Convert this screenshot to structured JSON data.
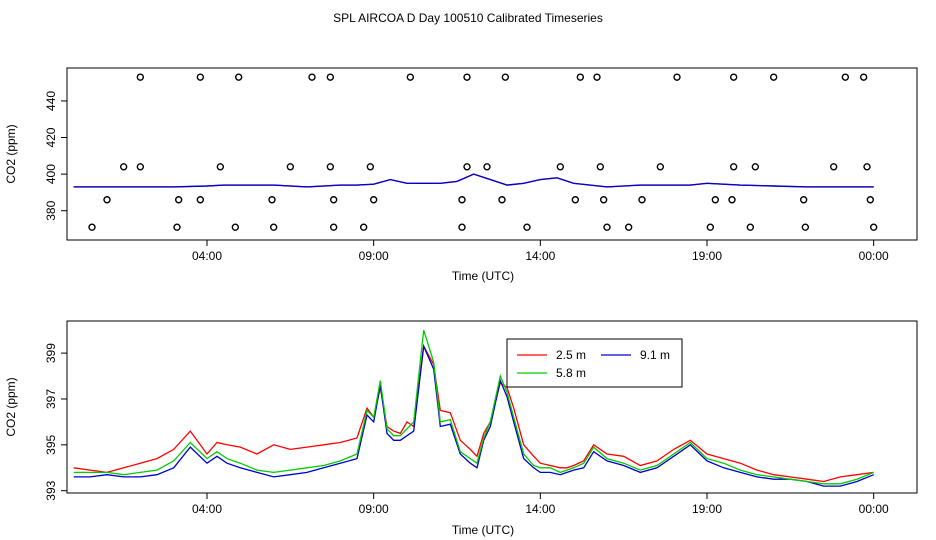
{
  "title": "SPL AIRCOA D  Day 100510  Calibrated Timeseries",
  "colors": {
    "s25": "#ff0000",
    "s58": "#00cc00",
    "s91": "#0000cc",
    "axis": "#000000"
  },
  "chart_data": [
    {
      "type": "line",
      "title": "",
      "xlabel": "Time (UTC)",
      "ylabel": "CO2 (ppm)",
      "xlim_hours": [
        -1.2,
        24.3
      ],
      "ylim": [
        364,
        458
      ],
      "x_ticks": [
        {
          "h": 3,
          "label": "04:00"
        },
        {
          "h": 8,
          "label": "09:00"
        },
        {
          "h": 13,
          "label": "14:00"
        },
        {
          "h": 18,
          "label": "19:00"
        },
        {
          "h": 23,
          "label": "00:00"
        }
      ],
      "y_ticks": [
        380,
        400,
        420,
        440
      ],
      "series_line": {
        "x": [
          -1,
          0,
          1,
          2,
          3,
          3.5,
          4,
          5,
          6,
          7,
          7.5,
          8,
          8.5,
          9,
          9.5,
          10,
          10.5,
          11,
          11.5,
          12,
          12.5,
          13,
          13.5,
          14,
          15,
          16,
          17,
          17.5,
          18,
          19,
          20,
          21,
          22,
          23
        ],
        "y": [
          393,
          393,
          393,
          393,
          393.5,
          394,
          394,
          394,
          393,
          394,
          394,
          394.5,
          397,
          395,
          395,
          395,
          396,
          400,
          397,
          394,
          395,
          397,
          398,
          395,
          393,
          394,
          394,
          394,
          395,
          394,
          393.5,
          393,
          393,
          393
        ]
      },
      "outliers": [
        {
          "h": 1.0,
          "v": 453
        },
        {
          "h": 2.8,
          "v": 453
        },
        {
          "h": 3.95,
          "v": 453
        },
        {
          "h": 6.15,
          "v": 453
        },
        {
          "h": 6.7,
          "v": 453
        },
        {
          "h": 9.1,
          "v": 453
        },
        {
          "h": 10.8,
          "v": 453
        },
        {
          "h": 11.95,
          "v": 453
        },
        {
          "h": 14.2,
          "v": 453
        },
        {
          "h": 14.7,
          "v": 453
        },
        {
          "h": 17.1,
          "v": 453
        },
        {
          "h": 18.8,
          "v": 453
        },
        {
          "h": 20.0,
          "v": 453
        },
        {
          "h": 22.15,
          "v": 453
        },
        {
          "h": 22.7,
          "v": 453
        },
        {
          "h": 0.5,
          "v": 404
        },
        {
          "h": 1.0,
          "v": 404
        },
        {
          "h": 3.4,
          "v": 404
        },
        {
          "h": 5.5,
          "v": 404
        },
        {
          "h": 6.7,
          "v": 404
        },
        {
          "h": 7.9,
          "v": 404
        },
        {
          "h": 10.8,
          "v": 404
        },
        {
          "h": 11.4,
          "v": 404
        },
        {
          "h": 13.6,
          "v": 404
        },
        {
          "h": 14.8,
          "v": 404
        },
        {
          "h": 16.6,
          "v": 404
        },
        {
          "h": 18.8,
          "v": 404
        },
        {
          "h": 19.45,
          "v": 404
        },
        {
          "h": 21.8,
          "v": 404
        },
        {
          "h": 22.8,
          "v": 404
        },
        {
          "h": 0,
          "v": 386
        },
        {
          "h": 2.15,
          "v": 386
        },
        {
          "h": 2.8,
          "v": 386
        },
        {
          "h": 4.95,
          "v": 386
        },
        {
          "h": 6.8,
          "v": 386
        },
        {
          "h": 8.0,
          "v": 386
        },
        {
          "h": 10.65,
          "v": 386
        },
        {
          "h": 11.85,
          "v": 386
        },
        {
          "h": 14.05,
          "v": 386
        },
        {
          "h": 14.9,
          "v": 386
        },
        {
          "h": 16.05,
          "v": 386
        },
        {
          "h": 18.25,
          "v": 386
        },
        {
          "h": 18.75,
          "v": 386
        },
        {
          "h": 20.9,
          "v": 386
        },
        {
          "h": 22.9,
          "v": 386
        },
        {
          "h": -0.45,
          "v": 371
        },
        {
          "h": 2.1,
          "v": 371
        },
        {
          "h": 3.85,
          "v": 371
        },
        {
          "h": 5.0,
          "v": 371
        },
        {
          "h": 6.8,
          "v": 371
        },
        {
          "h": 7.7,
          "v": 371
        },
        {
          "h": 10.65,
          "v": 371
        },
        {
          "h": 12.6,
          "v": 371
        },
        {
          "h": 15.0,
          "v": 371
        },
        {
          "h": 15.65,
          "v": 371
        },
        {
          "h": 18.1,
          "v": 371
        },
        {
          "h": 19.3,
          "v": 371
        },
        {
          "h": 20.95,
          "v": 371
        },
        {
          "h": 23.0,
          "v": 371
        }
      ]
    },
    {
      "type": "line",
      "xlabel": "Time (UTC)",
      "ylabel": "CO2 (ppm)",
      "xlim_hours": [
        -1.2,
        24.3
      ],
      "ylim": [
        392.9,
        400.4
      ],
      "x_ticks": [
        {
          "h": 3,
          "label": "04:00"
        },
        {
          "h": 8,
          "label": "09:00"
        },
        {
          "h": 13,
          "label": "14:00"
        },
        {
          "h": 18,
          "label": "19:00"
        },
        {
          "h": 23,
          "label": "00:00"
        }
      ],
      "y_ticks": [
        393,
        395,
        397,
        399
      ],
      "legend": {
        "placement": "top-center",
        "entries": [
          "2.5 m",
          "9.1 m",
          "5.8 m"
        ]
      },
      "x": [
        -1.0,
        -0.5,
        0,
        0.5,
        1,
        1.5,
        2,
        2.5,
        3,
        3.3,
        3.6,
        4,
        4.5,
        5,
        5.5,
        6,
        6.5,
        7,
        7.5,
        7.8,
        8,
        8.2,
        8.4,
        8.6,
        8.8,
        9.0,
        9.2,
        9.5,
        9.8,
        10.0,
        10.3,
        10.6,
        10.9,
        11.1,
        11.3,
        11.5,
        11.8,
        12.0,
        12.2,
        12.5,
        12.8,
        13.0,
        13.3,
        13.6,
        13.8,
        14.0,
        14.3,
        14.6,
        15,
        15.5,
        16,
        16.5,
        17,
        17.5,
        18,
        18.5,
        19,
        19.5,
        20,
        20.5,
        21,
        21.5,
        22,
        22.5,
        23
      ],
      "series": [
        {
          "name": "2.5 m",
          "values": [
            394.0,
            393.9,
            393.8,
            394.0,
            394.2,
            394.4,
            394.8,
            395.6,
            394.6,
            395.1,
            395.0,
            394.9,
            394.6,
            395.0,
            394.8,
            394.9,
            395.0,
            395.1,
            395.3,
            396.6,
            396.2,
            397.5,
            395.8,
            395.6,
            395.5,
            396.0,
            395.8,
            399.3,
            398.5,
            396.5,
            396.4,
            395.2,
            394.8,
            394.5,
            395.5,
            396.0,
            397.7,
            397.5,
            396.6,
            395.0,
            394.5,
            394.2,
            394.1,
            394.0,
            394.0,
            394.1,
            394.3,
            395.0,
            394.6,
            394.5,
            394.1,
            394.3,
            394.8,
            395.2,
            394.6,
            394.4,
            394.2,
            393.9,
            393.7,
            393.6,
            393.5,
            393.4,
            393.6,
            393.7,
            393.8
          ]
        },
        {
          "name": "9.1 m",
          "values": [
            393.6,
            393.6,
            393.7,
            393.6,
            393.6,
            393.7,
            394.0,
            394.9,
            394.2,
            394.5,
            394.2,
            394.0,
            393.8,
            393.6,
            393.7,
            393.8,
            394.0,
            394.2,
            394.4,
            396.3,
            396.0,
            397.6,
            395.5,
            395.2,
            395.2,
            395.4,
            395.6,
            399.3,
            398.3,
            395.8,
            395.9,
            394.6,
            394.2,
            394.0,
            395.2,
            395.8,
            397.8,
            397.1,
            396.0,
            394.4,
            394.0,
            393.8,
            393.8,
            393.7,
            393.8,
            393.9,
            394.0,
            394.7,
            394.3,
            394.1,
            393.8,
            394.0,
            394.5,
            395.0,
            394.3,
            394.0,
            393.8,
            393.6,
            393.5,
            393.5,
            393.4,
            393.2,
            393.2,
            393.4,
            393.7
          ]
        },
        {
          "name": "5.8 m",
          "values": [
            393.8,
            393.8,
            393.8,
            393.7,
            393.8,
            393.9,
            394.3,
            395.1,
            394.4,
            394.7,
            394.4,
            394.2,
            393.9,
            393.8,
            393.9,
            394.0,
            394.1,
            394.3,
            394.6,
            396.5,
            396.2,
            397.8,
            395.7,
            395.4,
            395.4,
            395.7,
            396.0,
            400.0,
            398.6,
            396.0,
            396.1,
            394.7,
            394.4,
            394.2,
            395.3,
            396.0,
            398.0,
            397.3,
            396.2,
            394.6,
            394.1,
            394.0,
            394.0,
            393.8,
            393.9,
            394.0,
            394.2,
            394.9,
            394.4,
            394.2,
            393.9,
            394.1,
            394.6,
            395.1,
            394.4,
            394.2,
            393.9,
            393.7,
            393.6,
            393.5,
            393.4,
            393.3,
            393.3,
            393.5,
            393.8
          ]
        }
      ]
    }
  ]
}
